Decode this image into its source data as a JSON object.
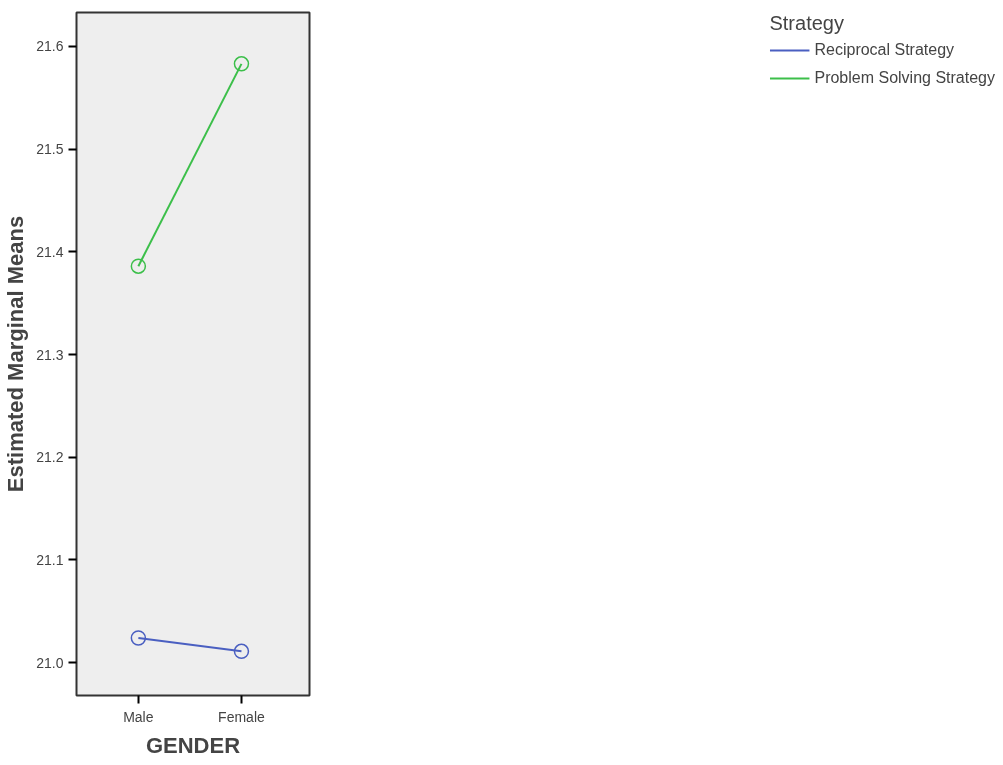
{
  "chart_data": {
    "type": "line",
    "xlabel": "GENDER",
    "ylabel": "Estimated Marginal Means",
    "legend_title": "Strategy",
    "categories": [
      "Male",
      "Female"
    ],
    "series": [
      {
        "name": "Reciprocal Strategy",
        "color": "#4a5fc1",
        "values": [
          21.024,
          21.011
        ]
      },
      {
        "name": "Problem Solving Strategy",
        "color": "#3cbf4a",
        "values": [
          21.386,
          21.583
        ]
      }
    ],
    "ylim": [
      20.968,
      21.633
    ],
    "yticks": [
      {
        "value": 21,
        "label": "21.0"
      },
      21.1,
      21.2,
      21.3,
      21.4,
      21.5,
      21.6
    ],
    "marker": "circle",
    "grid": false,
    "legend": "top right"
  }
}
